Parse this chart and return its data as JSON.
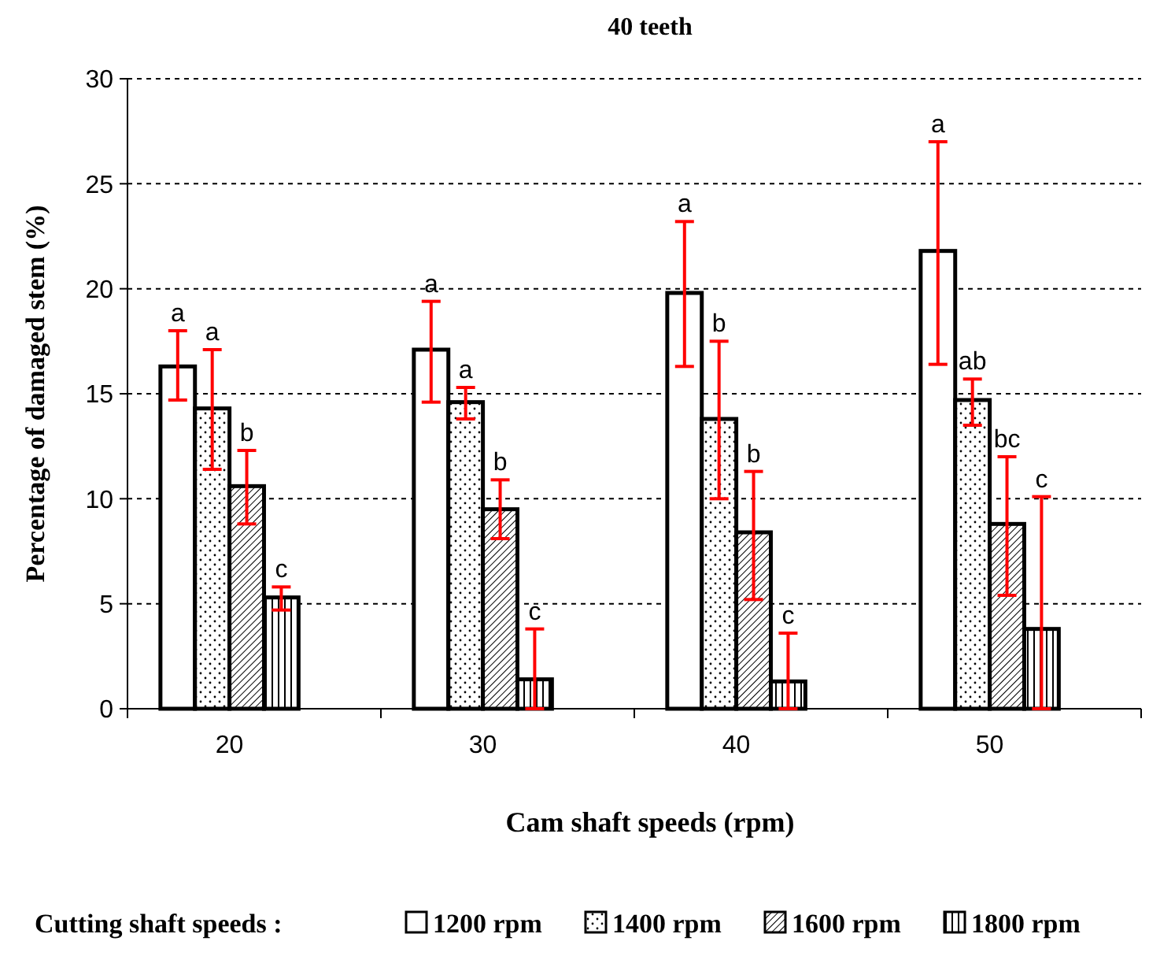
{
  "chart_data": {
    "type": "bar",
    "title": "40 teeth",
    "xlabel": "Cam shaft speeds (rpm)",
    "ylabel": "Percentage of damaged stem (%)",
    "legend_title": "Cutting shaft speeds :",
    "categories": [
      "20",
      "30",
      "40",
      "50"
    ],
    "series": [
      {
        "name": "1200 rpm",
        "color": "#ffffff",
        "values": [
          16.3,
          17.1,
          19.8,
          21.8
        ],
        "errors": [
          [
            14.7,
            18.0
          ],
          [
            14.6,
            19.4
          ],
          [
            16.3,
            23.2
          ],
          [
            16.4,
            27.0
          ]
        ]
      },
      {
        "name": "1400 rpm",
        "color": "#000000",
        "values": [
          14.3,
          14.6,
          13.8,
          14.7
        ],
        "errors": [
          [
            11.4,
            17.1
          ],
          [
            13.8,
            15.3
          ],
          [
            10.0,
            17.5
          ],
          [
            13.5,
            15.7
          ]
        ]
      },
      {
        "name": "1600 rpm",
        "color": "#000000",
        "values": [
          10.6,
          9.5,
          8.4,
          8.8
        ],
        "errors": [
          [
            8.8,
            12.3
          ],
          [
            8.1,
            10.9
          ],
          [
            5.2,
            11.3
          ],
          [
            5.4,
            12.0
          ]
        ]
      },
      {
        "name": "1800 rpm",
        "color": "#000000",
        "values": [
          5.3,
          1.4,
          1.3,
          3.8
        ],
        "errors": [
          [
            4.7,
            5.8
          ],
          [
            0,
            3.8
          ],
          [
            0,
            3.6
          ],
          [
            0,
            10.1
          ]
        ]
      }
    ],
    "annotations": [
      "a",
      "a",
      "b",
      "c",
      "a",
      "a",
      "b",
      "c",
      "a",
      "b",
      "b",
      "c",
      "a",
      "ab",
      "bc",
      "c"
    ],
    "ylim": [
      0,
      30
    ],
    "yticks": [
      0,
      5,
      10,
      15,
      20,
      25,
      30
    ],
    "grid": "y",
    "legend": "bottom"
  }
}
